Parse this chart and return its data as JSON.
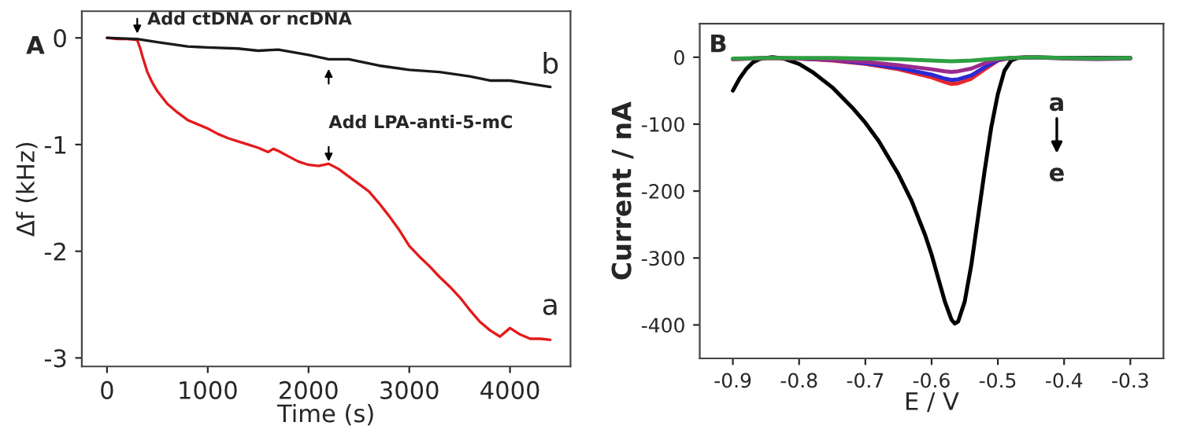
{
  "chart_data": [
    {
      "type": "line",
      "xlabel": "Time (s)",
      "ylabel": "Δf (kHz)",
      "xlim": [
        -250,
        4600
      ],
      "ylim": [
        -3.08,
        0.25
      ],
      "xticks": [
        0,
        1000,
        2000,
        3000,
        4000
      ],
      "yticks": [
        0,
        -1,
        -2,
        -3
      ],
      "grid": false,
      "legend": false,
      "series": [
        {
          "name": "a",
          "color": "#e41a1c",
          "x": [
            0,
            100,
            200,
            300,
            330,
            360,
            400,
            450,
            500,
            600,
            700,
            800,
            900,
            1000,
            1100,
            1200,
            1300,
            1400,
            1500,
            1600,
            1650,
            1700,
            1800,
            1900,
            2000,
            2100,
            2200,
            2300,
            2400,
            2500,
            2600,
            2700,
            2800,
            2900,
            3000,
            3100,
            3200,
            3300,
            3400,
            3500,
            3600,
            3700,
            3800,
            3900,
            4000,
            4100,
            4200,
            4300,
            4400
          ],
          "values": [
            0,
            -0.01,
            -0.01,
            -0.02,
            -0.1,
            -0.2,
            -0.32,
            -0.42,
            -0.5,
            -0.62,
            -0.7,
            -0.77,
            -0.81,
            -0.85,
            -0.9,
            -0.94,
            -0.97,
            -1.0,
            -1.03,
            -1.07,
            -1.04,
            -1.06,
            -1.11,
            -1.16,
            -1.19,
            -1.2,
            -1.18,
            -1.23,
            -1.3,
            -1.37,
            -1.44,
            -1.55,
            -1.67,
            -1.8,
            -1.95,
            -2.05,
            -2.14,
            -2.24,
            -2.33,
            -2.43,
            -2.55,
            -2.66,
            -2.74,
            -2.8,
            -2.72,
            -2.78,
            -2.82,
            -2.82,
            -2.83
          ]
        },
        {
          "name": "b",
          "color": "#1a1a1a",
          "x": [
            0,
            300,
            500,
            800,
            1000,
            1300,
            1500,
            1700,
            2000,
            2200,
            2400,
            2700,
            3000,
            3300,
            3600,
            3800,
            4000,
            4200,
            4400
          ],
          "values": [
            0,
            -0.01,
            -0.04,
            -0.08,
            -0.09,
            -0.1,
            -0.12,
            -0.11,
            -0.16,
            -0.2,
            -0.2,
            -0.26,
            -0.3,
            -0.32,
            -0.36,
            -0.4,
            -0.4,
            -0.43,
            -0.46
          ]
        }
      ],
      "annotations": [
        "A",
        {
          "text": "Add ctDNA or ncDNA",
          "x": 300,
          "y": 0
        },
        {
          "text": "Add LPA-anti-5-mC",
          "x": 2200,
          "y": -1.2
        }
      ]
    },
    {
      "type": "line",
      "xlabel": "E / V",
      "ylabel": "Current / nA",
      "xlim": [
        -0.95,
        -0.25
      ],
      "ylim": [
        -450,
        50
      ],
      "xticks": [
        -0.9,
        -0.8,
        -0.7,
        -0.6,
        -0.5,
        -0.4,
        -0.3
      ],
      "yticks": [
        0,
        -100,
        -200,
        -300,
        -400
      ],
      "grid": false,
      "legend": false,
      "series": [
        {
          "color": "#000000",
          "x": [
            -0.9,
            -0.89,
            -0.88,
            -0.87,
            -0.86,
            -0.85,
            -0.84,
            -0.83,
            -0.82,
            -0.8,
            -0.78,
            -0.75,
            -0.72,
            -0.7,
            -0.68,
            -0.65,
            -0.63,
            -0.61,
            -0.6,
            -0.59,
            -0.58,
            -0.57,
            -0.565,
            -0.56,
            -0.55,
            -0.54,
            -0.53,
            -0.52,
            -0.51,
            -0.5,
            -0.49,
            -0.48,
            -0.47,
            -0.45,
            -0.4,
            -0.35,
            -0.3
          ],
          "values": [
            -50,
            -32,
            -18,
            -8,
            -3,
            -1,
            0,
            -1,
            -3,
            -10,
            -22,
            -45,
            -75,
            -98,
            -125,
            -175,
            -215,
            -265,
            -295,
            -330,
            -365,
            -392,
            -398,
            -395,
            -365,
            -310,
            -240,
            -170,
            -105,
            -55,
            -20,
            -5,
            -1,
            0,
            -1,
            -1,
            -1
          ]
        },
        {
          "color": "#e8262a",
          "x": [
            -0.9,
            -0.85,
            -0.8,
            -0.75,
            -0.7,
            -0.65,
            -0.6,
            -0.58,
            -0.57,
            -0.56,
            -0.54,
            -0.52,
            -0.5,
            -0.48,
            -0.45
          ],
          "values": [
            -3,
            -1,
            -2,
            -5,
            -10,
            -18,
            -30,
            -37,
            -40,
            -39,
            -32,
            -18,
            -5,
            -1,
            0
          ]
        },
        {
          "color": "#2a2ad4",
          "x": [
            -0.8,
            -0.75,
            -0.7,
            -0.65,
            -0.6,
            -0.58,
            -0.57,
            -0.56,
            -0.54,
            -0.52,
            -0.5,
            -0.48
          ],
          "values": [
            -2,
            -4,
            -9,
            -16,
            -26,
            -32,
            -34,
            -33,
            -27,
            -15,
            -4,
            -1
          ]
        },
        {
          "color": "#9b2b8e",
          "x": [
            -0.9,
            -0.85,
            -0.8,
            -0.75,
            -0.7,
            -0.65,
            -0.6,
            -0.58,
            -0.57,
            -0.56,
            -0.54,
            -0.52,
            -0.5,
            -0.48,
            -0.45,
            -0.4,
            -0.35,
            -0.3
          ],
          "values": [
            -3,
            -1,
            -2,
            -4,
            -7,
            -12,
            -18,
            -21,
            -22,
            -21,
            -17,
            -9,
            -3,
            -1,
            0,
            -2,
            -3,
            -2
          ]
        },
        {
          "color": "#2ea043",
          "x": [
            -0.9,
            -0.85,
            -0.8,
            -0.75,
            -0.7,
            -0.65,
            -0.6,
            -0.57,
            -0.54,
            -0.5,
            -0.48,
            -0.45,
            -0.4,
            -0.35,
            -0.3
          ],
          "values": [
            -2,
            -1,
            -1,
            -1,
            -2,
            -3,
            -5,
            -6,
            -5,
            -2,
            -1,
            0,
            -1,
            -2,
            -1
          ]
        }
      ],
      "annotations": [
        "B",
        "a",
        "e"
      ]
    }
  ]
}
